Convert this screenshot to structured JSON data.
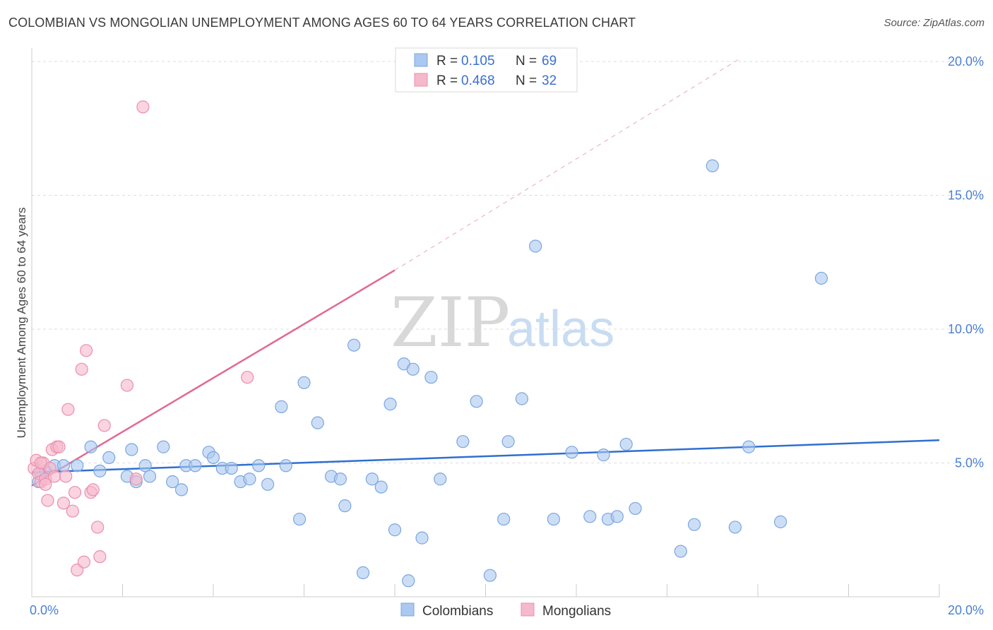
{
  "title": "COLOMBIAN VS MONGOLIAN UNEMPLOYMENT AMONG AGES 60 TO 64 YEARS CORRELATION CHART",
  "source": "Source: ZipAtlas.com",
  "watermark": {
    "zip": "ZIP",
    "atlas": "atlas"
  },
  "legend_top": {
    "rows": [
      {
        "r_label": "R =",
        "r_value": "0.105",
        "n_label": "N =",
        "n_value": "69",
        "color": "#aac8f0"
      },
      {
        "r_label": "R =",
        "r_value": "0.468",
        "n_label": "N =",
        "n_value": "32",
        "color": "#f6b8cb"
      }
    ]
  },
  "legend_bottom": {
    "items": [
      {
        "label": "Colombians",
        "color": "#aac8f0"
      },
      {
        "label": "Mongolians",
        "color": "#f6b8cb"
      }
    ]
  },
  "chart_data": {
    "type": "scatter",
    "ylabel": "Unemployment Among Ages 60 to 64 years",
    "xlabel": "",
    "xlim": [
      0,
      20
    ],
    "ylim": [
      0,
      20.5
    ],
    "x_tick_labels": [
      {
        "value": 0,
        "label": "0.0%"
      },
      {
        "value": 20,
        "label": "20.0%"
      }
    ],
    "y_tick_labels": [
      {
        "value": 5,
        "label": "5.0%"
      },
      {
        "value": 10,
        "label": "10.0%"
      },
      {
        "value": 15,
        "label": "15.0%"
      },
      {
        "value": 20,
        "label": "20.0%"
      }
    ],
    "grid": true,
    "series": [
      {
        "name": "Colombians",
        "color": "#aac8f0",
        "stroke": "#7aa6e0",
        "trend": {
          "x": [
            0,
            20
          ],
          "y": [
            4.65,
            5.85
          ],
          "color": "#2f6fd0"
        },
        "points": [
          [
            0.15,
            4.3
          ],
          [
            0.3,
            4.7
          ],
          [
            0.5,
            4.9
          ],
          [
            0.7,
            4.9
          ],
          [
            1.0,
            4.9
          ],
          [
            1.5,
            4.7
          ],
          [
            1.3,
            5.6
          ],
          [
            1.7,
            5.2
          ],
          [
            2.2,
            5.5
          ],
          [
            2.1,
            4.5
          ],
          [
            2.3,
            4.3
          ],
          [
            2.5,
            4.9
          ],
          [
            2.6,
            4.5
          ],
          [
            2.9,
            5.6
          ],
          [
            3.1,
            4.3
          ],
          [
            3.3,
            4.0
          ],
          [
            3.4,
            4.9
          ],
          [
            3.6,
            4.9
          ],
          [
            3.9,
            5.4
          ],
          [
            4.0,
            5.2
          ],
          [
            4.2,
            4.8
          ],
          [
            4.4,
            4.8
          ],
          [
            4.6,
            4.3
          ],
          [
            4.8,
            4.4
          ],
          [
            5.0,
            4.9
          ],
          [
            5.2,
            4.2
          ],
          [
            5.5,
            7.1
          ],
          [
            5.6,
            4.9
          ],
          [
            5.9,
            2.9
          ],
          [
            6.0,
            8.0
          ],
          [
            6.3,
            6.5
          ],
          [
            6.6,
            4.5
          ],
          [
            6.8,
            4.4
          ],
          [
            6.9,
            3.4
          ],
          [
            7.1,
            9.4
          ],
          [
            7.3,
            0.9
          ],
          [
            7.5,
            4.4
          ],
          [
            7.7,
            4.1
          ],
          [
            7.9,
            7.2
          ],
          [
            8.0,
            2.5
          ],
          [
            8.2,
            8.7
          ],
          [
            8.3,
            0.6
          ],
          [
            8.4,
            8.5
          ],
          [
            8.6,
            2.2
          ],
          [
            8.8,
            8.2
          ],
          [
            9.0,
            4.4
          ],
          [
            9.5,
            5.8
          ],
          [
            9.8,
            7.3
          ],
          [
            10.1,
            0.8
          ],
          [
            10.4,
            2.9
          ],
          [
            10.5,
            5.8
          ],
          [
            10.8,
            7.4
          ],
          [
            11.1,
            13.1
          ],
          [
            11.5,
            2.9
          ],
          [
            11.9,
            5.4
          ],
          [
            12.3,
            3.0
          ],
          [
            12.6,
            5.3
          ],
          [
            12.7,
            2.9
          ],
          [
            12.9,
            3.0
          ],
          [
            13.1,
            5.7
          ],
          [
            13.3,
            3.3
          ],
          [
            14.3,
            1.7
          ],
          [
            14.6,
            2.7
          ],
          [
            15.0,
            16.1
          ],
          [
            15.5,
            2.6
          ],
          [
            15.8,
            5.6
          ],
          [
            16.5,
            2.8
          ],
          [
            17.4,
            11.9
          ],
          [
            0.2,
            4.6
          ]
        ]
      },
      {
        "name": "Mongolians",
        "color": "#f6b8cb",
        "stroke": "#ea8fab",
        "trend": {
          "x": [
            0,
            8.0
          ],
          "y": [
            4.15,
            12.2
          ],
          "color": "#e06a94"
        },
        "trend_ext": {
          "x": [
            8.0,
            15.6
          ],
          "y": [
            12.2,
            20.1
          ]
        },
        "points": [
          [
            0.05,
            4.8
          ],
          [
            0.1,
            5.1
          ],
          [
            0.15,
            4.6
          ],
          [
            0.2,
            4.3
          ],
          [
            0.25,
            5.0
          ],
          [
            0.3,
            4.4
          ],
          [
            0.35,
            3.6
          ],
          [
            0.4,
            4.8
          ],
          [
            0.45,
            5.5
          ],
          [
            0.5,
            4.5
          ],
          [
            0.55,
            5.6
          ],
          [
            0.6,
            5.6
          ],
          [
            0.7,
            3.5
          ],
          [
            0.75,
            4.5
          ],
          [
            0.8,
            7.0
          ],
          [
            0.9,
            3.2
          ],
          [
            0.95,
            3.9
          ],
          [
            1.0,
            1.0
          ],
          [
            1.1,
            8.5
          ],
          [
            1.15,
            1.3
          ],
          [
            1.2,
            9.2
          ],
          [
            1.3,
            3.9
          ],
          [
            1.35,
            4.0
          ],
          [
            1.45,
            2.6
          ],
          [
            1.5,
            1.5
          ],
          [
            1.6,
            6.4
          ],
          [
            2.1,
            7.9
          ],
          [
            2.3,
            4.4
          ],
          [
            2.45,
            18.3
          ],
          [
            4.75,
            8.2
          ],
          [
            0.2,
            5.0
          ],
          [
            0.3,
            4.2
          ]
        ]
      }
    ]
  }
}
